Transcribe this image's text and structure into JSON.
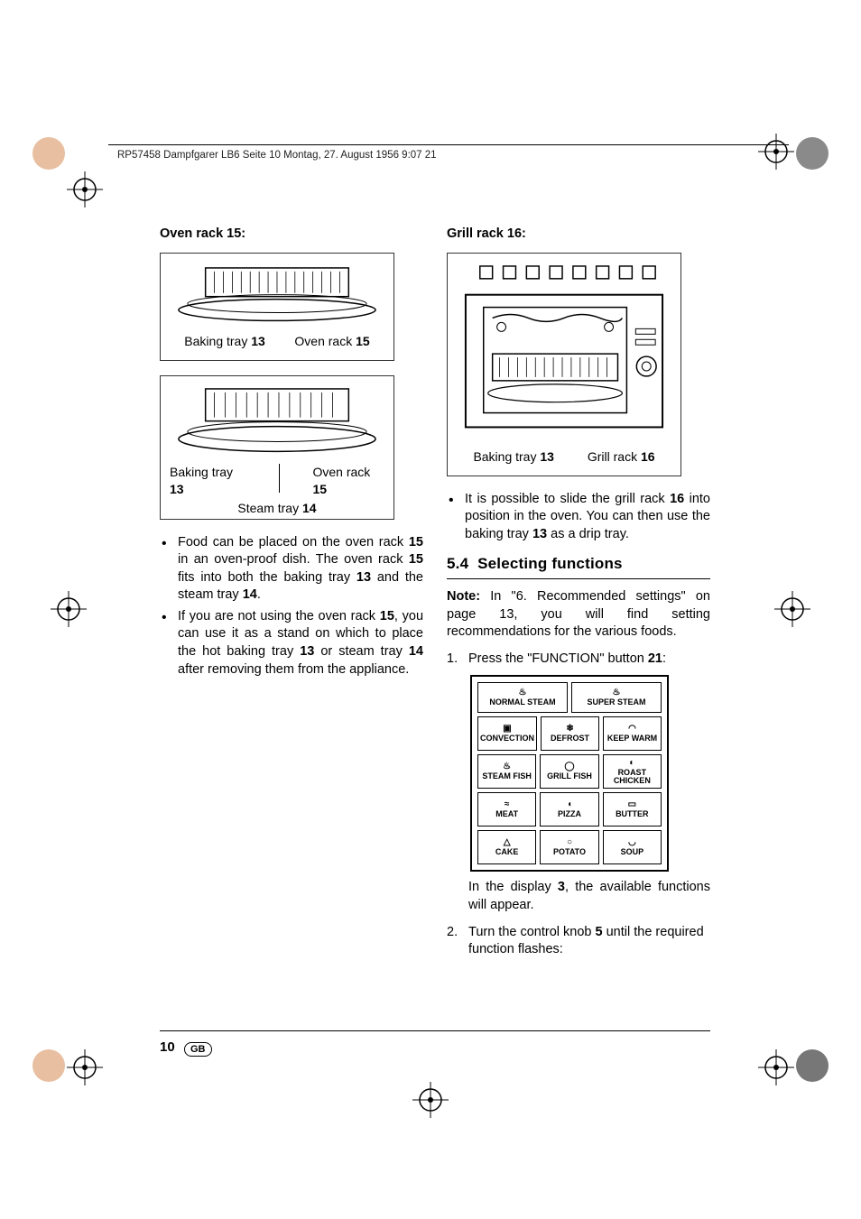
{
  "header": {
    "text": "RP57458 Dampfgarer LB6  Seite 10  Montag, 27. August 1956  9:07 21"
  },
  "left": {
    "heading": "Oven rack 15:",
    "fig1": {
      "labels": [
        {
          "text": "Baking tray ",
          "num": "13"
        },
        {
          "text": "Oven rack ",
          "num": "15"
        }
      ]
    },
    "fig2": {
      "row1": [
        {
          "text": "Baking tray ",
          "num": "13"
        },
        {
          "text": "Oven rack ",
          "num": "15"
        }
      ],
      "row2": {
        "text": "Steam tray ",
        "num": "14"
      }
    },
    "bullets": [
      {
        "html": "Food can be placed on the oven rack <b>15</b> in an oven-proof dish. The oven rack <b>15</b> fits into both the baking tray <b>13</b> and the steam tray <b>14</b>."
      },
      {
        "html": "If you are not using the oven rack <b>15</b>, you can use it as a stand on which to place the hot baking tray <b>13</b> or steam tray <b>14</b> after removing them from the appliance."
      }
    ]
  },
  "right": {
    "heading": "Grill rack 16:",
    "fig": {
      "labels": [
        {
          "text": "Baking tray ",
          "num": "13"
        },
        {
          "text": "Grill rack ",
          "num": "16"
        }
      ]
    },
    "bullets": [
      {
        "html": "It is possible to slide the grill rack <b>16</b> into position in the oven. You can then use the baking tray <b>13</b> as a drip tray."
      }
    ],
    "section": {
      "number": "5.4",
      "title": "Selecting functions"
    },
    "note": {
      "html": "<b>Note:</b> In \"6. Recommended settings\" on page 13, you will find setting recommendations for the various foods."
    },
    "step1": {
      "html": "Press the \"FUNCTION\" button <b>21</b>:"
    },
    "panel": {
      "rows": [
        [
          {
            "label": "NORMAL STEAM",
            "icon": "♨",
            "w": 2
          },
          {
            "label": "SUPER STEAM",
            "icon": "♨",
            "w": 2
          }
        ],
        [
          {
            "label": "CONVECTION",
            "icon": "▣",
            "w": 1
          },
          {
            "label": "DEFROST",
            "icon": "❄",
            "w": 1
          },
          {
            "label": "KEEP WARM",
            "icon": "◠",
            "w": 1
          }
        ],
        [
          {
            "label": "STEAM FISH",
            "icon": "♨",
            "w": 1
          },
          {
            "label": "GRILL FISH",
            "icon": "◯",
            "w": 1
          },
          {
            "label": "ROAST CHICKEN",
            "icon": "◐",
            "w": 1
          }
        ],
        [
          {
            "label": "MEAT",
            "icon": "≈",
            "w": 1
          },
          {
            "label": "PIZZA",
            "icon": "◖",
            "w": 1
          },
          {
            "label": "BUTTER",
            "icon": "▭",
            "w": 1
          }
        ],
        [
          {
            "label": "CAKE",
            "icon": "△",
            "w": 1
          },
          {
            "label": "POTATO",
            "icon": "○",
            "w": 1
          },
          {
            "label": "SOUP",
            "icon": "◡",
            "w": 1
          }
        ]
      ]
    },
    "after_panel": {
      "html": "In the display <b>3</b>, the available functions will appear."
    },
    "step2": {
      "html": "Turn the control knob <b>5</b> until the required function flashes:"
    }
  },
  "footer": {
    "page": "10",
    "lang": "GB"
  },
  "colors": {
    "dot_left": "#e8bfa0",
    "dot_right": "#8a8a8a",
    "dot_br": "#777777"
  }
}
